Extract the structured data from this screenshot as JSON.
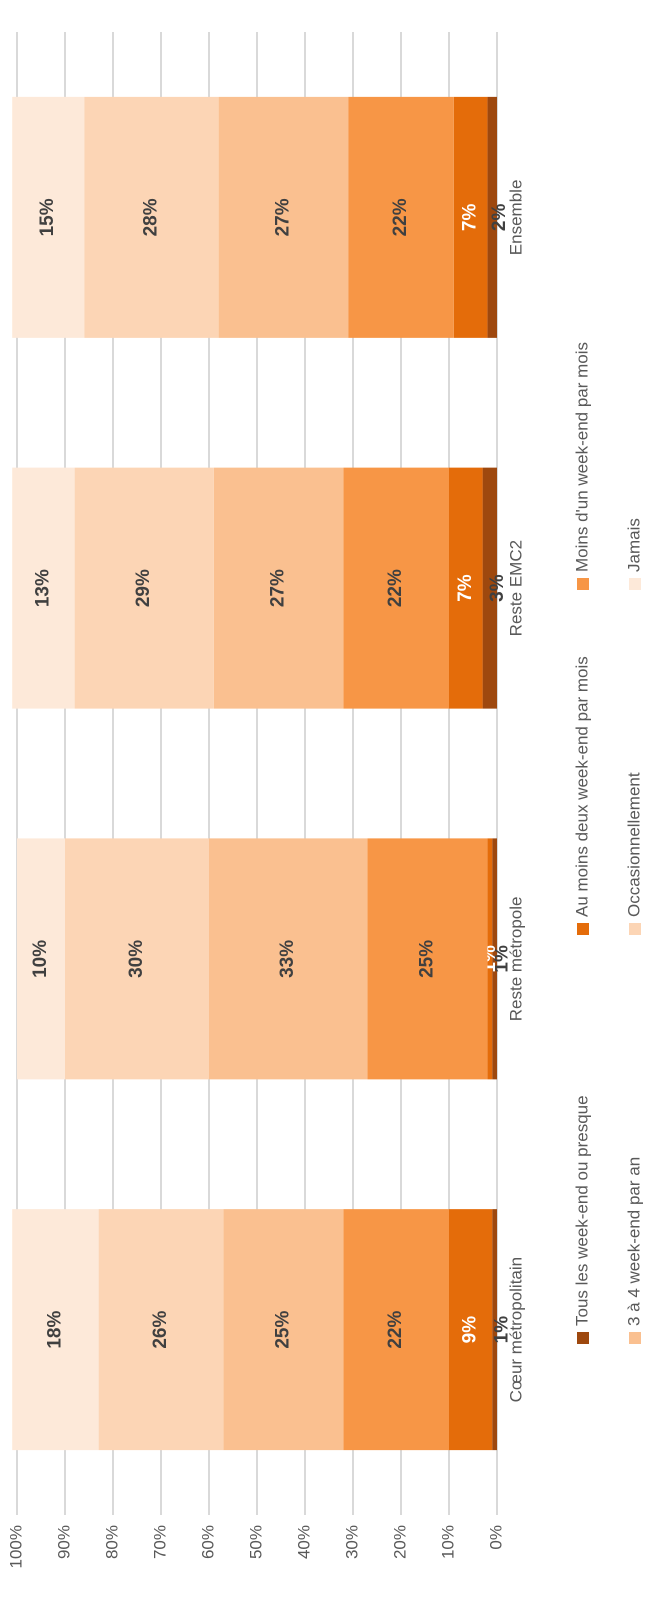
{
  "chart_data": {
    "type": "stacked_bar",
    "categories": [
      "Cœur métropolitain",
      "Reste métropole",
      "Reste EMC2",
      "Ensemble"
    ],
    "series": [
      {
        "name": "Tous les week-end ou presque",
        "color": "#9e480e",
        "values": [
          1,
          1,
          3,
          2
        ],
        "value_labels": [
          "1%",
          "1%",
          "3%",
          "2%"
        ]
      },
      {
        "name": "Au moins deux week-end par mois",
        "color": "#e46c0a",
        "values": [
          9,
          1,
          7,
          7
        ],
        "value_labels": [
          "9%",
          "1%",
          "7%",
          "7%"
        ]
      },
      {
        "name": "Moins d'un week-end par mois",
        "color": "#f79646",
        "values": [
          22,
          25,
          22,
          22
        ],
        "value_labels": [
          "22%",
          "25%",
          "22%",
          "22%"
        ]
      },
      {
        "name": "3 à 4 week-end par  an",
        "color": "#fac090",
        "values": [
          25,
          33,
          27,
          27
        ],
        "value_labels": [
          "25%",
          "33%",
          "27%",
          "27%"
        ]
      },
      {
        "name": "Occasionnellement",
        "color": "#fcd5b5",
        "values": [
          26,
          30,
          29,
          28
        ],
        "value_labels": [
          "26%",
          "30%",
          "29%",
          "28%"
        ]
      },
      {
        "name": "Jamais",
        "color": "#fde9d9",
        "values": [
          18,
          10,
          13,
          15
        ],
        "value_labels": [
          "18%",
          "10%",
          "13%",
          "15%"
        ]
      }
    ],
    "ylim": [
      0,
      100
    ],
    "yticks": [
      {
        "value": 0,
        "label": "0%"
      },
      {
        "value": 10,
        "label": "10%"
      },
      {
        "value": 20,
        "label": "20%"
      },
      {
        "value": 30,
        "label": "30%"
      },
      {
        "value": 40,
        "label": "40%"
      },
      {
        "value": 50,
        "label": "50%"
      },
      {
        "value": 60,
        "label": "60%"
      },
      {
        "value": 70,
        "label": "70%"
      },
      {
        "value": 80,
        "label": "80%"
      },
      {
        "value": 90,
        "label": "90%"
      },
      {
        "value": 100,
        "label": "100%"
      }
    ],
    "grid": true,
    "legend": "bottom"
  }
}
